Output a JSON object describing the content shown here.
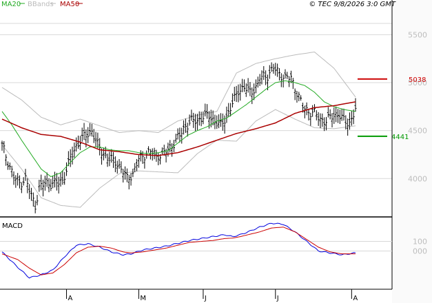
{
  "header": {
    "legend": [
      {
        "name": "MA20",
        "color": "#22aa22"
      },
      {
        "name": "BBands",
        "color": "#bbbbbb"
      },
      {
        "name": "MA50",
        "color": "#aa0000"
      }
    ],
    "copyright": "© TEC 9/8/2026 3:0 GMT"
  },
  "chart_data": [
    {
      "type": "line",
      "role": "price",
      "ylim": [
        3600,
        5740
      ],
      "yticks": [
        4000,
        4500,
        5000,
        5500
      ],
      "ytick_labels": [
        "4000",
        "4500",
        "5000",
        "5500"
      ],
      "month_labels": [
        {
          "label": "A",
          "day": 33
        },
        {
          "label": "M",
          "day": 70
        },
        {
          "label": "J",
          "day": 103
        },
        {
          "label": "J",
          "day": 140
        },
        {
          "label": "A",
          "day": 179
        }
      ],
      "grid": true,
      "resistance": {
        "value": 5038,
        "label": "5038",
        "color": "#cc0000"
      },
      "support": {
        "value": 4441,
        "label": "4441",
        "color": "#009900"
      },
      "price_anchors": [
        [
          0,
          4350
        ],
        [
          3,
          4180
        ],
        [
          6,
          4020
        ],
        [
          9,
          3950
        ],
        [
          12,
          4000
        ],
        [
          15,
          3820
        ],
        [
          17,
          3720
        ],
        [
          19,
          3900
        ],
        [
          22,
          3950
        ],
        [
          25,
          3950
        ],
        [
          28,
          3950
        ],
        [
          31,
          3980
        ],
        [
          34,
          4150
        ],
        [
          37,
          4300
        ],
        [
          40,
          4400
        ],
        [
          43,
          4450
        ],
        [
          46,
          4500
        ],
        [
          49,
          4350
        ],
        [
          52,
          4250
        ],
        [
          55,
          4200
        ],
        [
          58,
          4180
        ],
        [
          61,
          4100
        ],
        [
          64,
          4000
        ],
        [
          67,
          4050
        ],
        [
          70,
          4200
        ],
        [
          73,
          4250
        ],
        [
          76,
          4280
        ],
        [
          79,
          4250
        ],
        [
          82,
          4250
        ],
        [
          85,
          4300
        ],
        [
          88,
          4370
        ],
        [
          91,
          4450
        ],
        [
          94,
          4550
        ],
        [
          97,
          4600
        ],
        [
          100,
          4600
        ],
        [
          103,
          4650
        ],
        [
          106,
          4650
        ],
        [
          109,
          4600
        ],
        [
          112,
          4550
        ],
        [
          115,
          4650
        ],
        [
          118,
          4780
        ],
        [
          121,
          4920
        ],
        [
          124,
          4950
        ],
        [
          127,
          4900
        ],
        [
          130,
          4950
        ],
        [
          133,
          5050
        ],
        [
          136,
          5080
        ],
        [
          139,
          5150
        ],
        [
          142,
          5100
        ],
        [
          145,
          5050
        ],
        [
          148,
          5050
        ],
        [
          151,
          4900
        ],
        [
          154,
          4750
        ],
        [
          157,
          4700
        ],
        [
          160,
          4680
        ],
        [
          163,
          4620
        ],
        [
          166,
          4600
        ],
        [
          169,
          4650
        ],
        [
          172,
          4680
        ],
        [
          175,
          4600
        ],
        [
          178,
          4580
        ],
        [
          181,
          4720
        ]
      ],
      "ma20_anchors": [
        [
          0,
          4700
        ],
        [
          5,
          4560
        ],
        [
          10,
          4400
        ],
        [
          15,
          4250
        ],
        [
          20,
          4100
        ],
        [
          25,
          4020
        ],
        [
          30,
          4060
        ],
        [
          35,
          4170
        ],
        [
          40,
          4270
        ],
        [
          45,
          4330
        ],
        [
          50,
          4330
        ],
        [
          55,
          4300
        ],
        [
          60,
          4290
        ],
        [
          65,
          4290
        ],
        [
          70,
          4270
        ],
        [
          75,
          4260
        ],
        [
          80,
          4270
        ],
        [
          85,
          4290
        ],
        [
          90,
          4370
        ],
        [
          95,
          4450
        ],
        [
          100,
          4500
        ],
        [
          105,
          4540
        ],
        [
          110,
          4600
        ],
        [
          115,
          4630
        ],
        [
          120,
          4700
        ],
        [
          125,
          4770
        ],
        [
          130,
          4850
        ],
        [
          135,
          4930
        ],
        [
          140,
          5000
        ],
        [
          145,
          5020
        ],
        [
          150,
          5000
        ],
        [
          155,
          4970
        ],
        [
          160,
          4900
        ],
        [
          165,
          4800
        ],
        [
          170,
          4750
        ],
        [
          175,
          4720
        ],
        [
          181,
          4700
        ]
      ],
      "ma50_anchors": [
        [
          0,
          4620
        ],
        [
          10,
          4530
        ],
        [
          20,
          4460
        ],
        [
          30,
          4440
        ],
        [
          40,
          4380
        ],
        [
          50,
          4300
        ],
        [
          60,
          4280
        ],
        [
          70,
          4250
        ],
        [
          80,
          4240
        ],
        [
          90,
          4270
        ],
        [
          100,
          4330
        ],
        [
          110,
          4400
        ],
        [
          120,
          4470
        ],
        [
          130,
          4520
        ],
        [
          140,
          4580
        ],
        [
          150,
          4680
        ],
        [
          160,
          4740
        ],
        [
          170,
          4760
        ],
        [
          181,
          4800
        ]
      ],
      "bb_upper_anchors": [
        [
          0,
          4950
        ],
        [
          10,
          4820
        ],
        [
          20,
          4640
        ],
        [
          30,
          4560
        ],
        [
          40,
          4620
        ],
        [
          50,
          4550
        ],
        [
          60,
          4480
        ],
        [
          70,
          4500
        ],
        [
          80,
          4480
        ],
        [
          90,
          4600
        ],
        [
          100,
          4660
        ],
        [
          110,
          4700
        ],
        [
          120,
          5100
        ],
        [
          130,
          5200
        ],
        [
          140,
          5250
        ],
        [
          150,
          5290
        ],
        [
          160,
          5320
        ],
        [
          170,
          5150
        ],
        [
          181,
          4850
        ]
      ],
      "bb_lower_anchors": [
        [
          0,
          4350
        ],
        [
          10,
          4100
        ],
        [
          20,
          3800
        ],
        [
          30,
          3720
        ],
        [
          40,
          3700
        ],
        [
          50,
          3900
        ],
        [
          60,
          4050
        ],
        [
          70,
          4080
        ],
        [
          80,
          4070
        ],
        [
          90,
          4060
        ],
        [
          100,
          4260
        ],
        [
          110,
          4400
        ],
        [
          120,
          4390
        ],
        [
          130,
          4600
        ],
        [
          140,
          4720
        ],
        [
          150,
          4620
        ],
        [
          160,
          4530
        ],
        [
          170,
          4520
        ],
        [
          181,
          4550
        ]
      ]
    },
    {
      "type": "line",
      "role": "macd",
      "title": "MACD",
      "ylim": [
        -400,
        320
      ],
      "yticks": [
        100,
        0
      ],
      "ytick_labels": [
        "100",
        "000"
      ],
      "macd_anchors": [
        [
          0,
          -10
        ],
        [
          8,
          -170
        ],
        [
          14,
          -280
        ],
        [
          20,
          -250
        ],
        [
          26,
          -200
        ],
        [
          32,
          -60
        ],
        [
          38,
          60
        ],
        [
          44,
          75
        ],
        [
          50,
          40
        ],
        [
          56,
          -10
        ],
        [
          62,
          -40
        ],
        [
          66,
          -30
        ],
        [
          72,
          10
        ],
        [
          78,
          30
        ],
        [
          84,
          50
        ],
        [
          90,
          80
        ],
        [
          96,
          110
        ],
        [
          102,
          130
        ],
        [
          108,
          150
        ],
        [
          114,
          170
        ],
        [
          118,
          150
        ],
        [
          122,
          170
        ],
        [
          126,
          200
        ],
        [
          132,
          250
        ],
        [
          138,
          290
        ],
        [
          144,
          280
        ],
        [
          150,
          200
        ],
        [
          156,
          100
        ],
        [
          162,
          0
        ],
        [
          168,
          -20
        ],
        [
          174,
          -40
        ],
        [
          181,
          -20
        ]
      ],
      "signal_anchors": [
        [
          0,
          -30
        ],
        [
          8,
          -90
        ],
        [
          14,
          -180
        ],
        [
          20,
          -250
        ],
        [
          26,
          -230
        ],
        [
          32,
          -140
        ],
        [
          38,
          -20
        ],
        [
          44,
          40
        ],
        [
          50,
          50
        ],
        [
          56,
          30
        ],
        [
          62,
          -10
        ],
        [
          66,
          -20
        ],
        [
          72,
          -10
        ],
        [
          78,
          10
        ],
        [
          84,
          30
        ],
        [
          90,
          60
        ],
        [
          96,
          90
        ],
        [
          102,
          100
        ],
        [
          108,
          110
        ],
        [
          114,
          130
        ],
        [
          118,
          135
        ],
        [
          122,
          150
        ],
        [
          126,
          170
        ],
        [
          132,
          200
        ],
        [
          138,
          240
        ],
        [
          144,
          250
        ],
        [
          150,
          200
        ],
        [
          156,
          120
        ],
        [
          162,
          40
        ],
        [
          168,
          -10
        ],
        [
          174,
          -30
        ],
        [
          181,
          -30
        ]
      ],
      "colors": {
        "macd": "#0000dd",
        "signal": "#cc0000"
      }
    }
  ]
}
